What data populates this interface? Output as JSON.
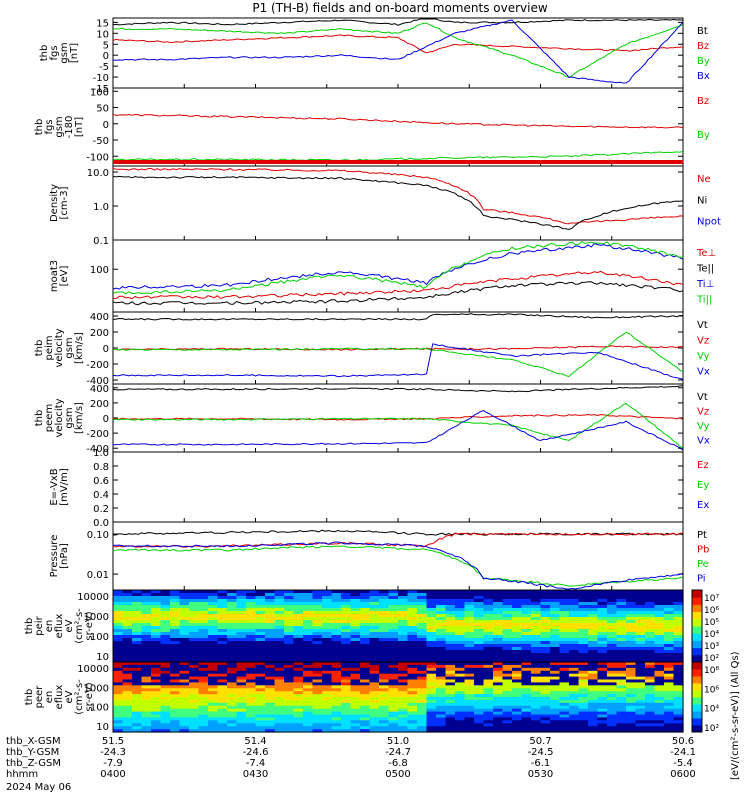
{
  "title": "P1  (TH-B) fields and on-board moments overview",
  "date_label": "2024 May 06",
  "time_axis": {
    "rows": [
      {
        "label": "thb_X-GSM",
        "values": [
          "51.5",
          "51.4",
          "51.0",
          "50.7",
          "50.6"
        ]
      },
      {
        "label": "thb_Y-GSM",
        "values": [
          "-24.3",
          "-24.6",
          "-24.7",
          "-24.5",
          "-24.1"
        ]
      },
      {
        "label": "thb_Z-GSM",
        "values": [
          "-7.9",
          "-7.4",
          "-6.8",
          "-6.1",
          "-5.4"
        ]
      },
      {
        "label": "hhmm",
        "values": [
          "0400",
          "0430",
          "0500",
          "0530",
          "0600"
        ]
      }
    ]
  },
  "colors": {
    "black": "#000000",
    "red": "#e00000",
    "green": "#00d000",
    "blue": "#0000e0"
  },
  "chart_data": [
    {
      "type": "line",
      "panel": "fgs-gsm",
      "ylabel": [
        "thb",
        "fgs",
        "gsm",
        "[nT]"
      ],
      "ylim": [
        -15,
        17
      ],
      "yticks": [
        15,
        10,
        5,
        0,
        -5,
        -10,
        -15
      ],
      "series": [
        {
          "name": "Bt",
          "color": "#000000",
          "x": [
            0,
            0.1,
            0.2,
            0.3,
            0.4,
            0.5,
            0.55,
            0.6,
            0.7,
            0.8,
            0.9,
            1
          ],
          "values": [
            14,
            15,
            14,
            15,
            16,
            14,
            17,
            15,
            15,
            16,
            16,
            16
          ]
        },
        {
          "name": "Bz",
          "color": "#e00000",
          "x": [
            0,
            0.1,
            0.2,
            0.3,
            0.4,
            0.5,
            0.55,
            0.6,
            0.7,
            0.8,
            0.9,
            1
          ],
          "values": [
            7,
            6,
            7,
            8,
            9,
            8,
            1,
            5,
            4,
            3,
            2,
            4
          ]
        },
        {
          "name": "By",
          "color": "#00d000",
          "x": [
            0,
            0.1,
            0.2,
            0.3,
            0.4,
            0.5,
            0.55,
            0.6,
            0.7,
            0.8,
            0.9,
            1
          ],
          "values": [
            12,
            12,
            11,
            10,
            12,
            10,
            15,
            8,
            0,
            -10,
            5,
            14
          ]
        },
        {
          "name": "Bx",
          "color": "#0000e0",
          "x": [
            0,
            0.1,
            0.2,
            0.3,
            0.4,
            0.5,
            0.55,
            0.6,
            0.7,
            0.8,
            0.9,
            1
          ],
          "values": [
            -2,
            -2,
            -1,
            -1,
            0,
            -2,
            4,
            10,
            16,
            -10,
            -13,
            15
          ]
        }
      ]
    },
    {
      "type": "line",
      "panel": "fgs-gsm-180",
      "ylabel": [
        "thb",
        "fgs",
        "gsm",
        "-180",
        "[nT]"
      ],
      "ylim": [
        -130,
        110
      ],
      "yticks": [
        100,
        50,
        0,
        -50,
        -100
      ],
      "series": [
        {
          "name": "Bz",
          "color": "#e00000",
          "x": [
            0,
            0.2,
            0.4,
            0.6,
            0.8,
            1
          ],
          "values": [
            28,
            22,
            15,
            0,
            -8,
            -12
          ]
        },
        {
          "name": "By",
          "color": "#00d000",
          "x": [
            0,
            0.2,
            0.4,
            0.6,
            0.8,
            1
          ],
          "values": [
            -110,
            -110,
            -112,
            -105,
            -100,
            -85
          ]
        }
      ]
    },
    {
      "type": "line",
      "panel": "density",
      "ylabel": [
        "Density",
        "[cm-3]"
      ],
      "log": true,
      "ylim": [
        0.1,
        15
      ],
      "yticks": [
        "10.0",
        "1.0",
        "0.1"
      ],
      "series": [
        {
          "name": "Ne",
          "color": "#e00000",
          "x": [
            0,
            0.2,
            0.4,
            0.55,
            0.65,
            0.8,
            1
          ],
          "values": [
            12,
            12,
            11,
            7,
            0.8,
            0.3,
            0.5
          ]
        },
        {
          "name": "Ni",
          "color": "#000000",
          "x": [
            0,
            0.2,
            0.4,
            0.55,
            0.65,
            0.8,
            1
          ],
          "values": [
            7,
            7,
            6.5,
            4,
            0.5,
            0.2,
            1.5
          ]
        },
        {
          "name": "Npot",
          "color": "#0000e0",
          "x": [
            0,
            1
          ],
          "values": [
            null,
            null
          ]
        }
      ]
    },
    {
      "type": "line",
      "panel": "moat3",
      "ylabel": [
        "moat3",
        "[eV]"
      ],
      "log": true,
      "ylim": [
        20,
        300
      ],
      "yticks": [
        "100"
      ],
      "series": [
        {
          "name": "Te⊥",
          "color": "#e00000",
          "x": [
            0,
            0.2,
            0.4,
            0.55,
            0.7,
            0.85,
            1
          ],
          "values": [
            35,
            35,
            40,
            45,
            70,
            90,
            55
          ]
        },
        {
          "name": "Te||",
          "color": "#000000",
          "x": [
            0,
            0.2,
            0.4,
            0.55,
            0.7,
            0.85,
            1
          ],
          "values": [
            28,
            28,
            30,
            35,
            55,
            60,
            45
          ]
        },
        {
          "name": "Ti⊥",
          "color": "#0000e0",
          "x": [
            0,
            0.2,
            0.4,
            0.55,
            0.7,
            0.85,
            1
          ],
          "values": [
            50,
            55,
            90,
            60,
            180,
            250,
            150
          ]
        },
        {
          "name": "Ti||",
          "color": "#00d000",
          "x": [
            0,
            0.2,
            0.4,
            0.55,
            0.7,
            0.85,
            1
          ],
          "values": [
            40,
            45,
            80,
            50,
            220,
            280,
            160
          ]
        }
      ]
    },
    {
      "type": "line",
      "panel": "peim-velocity",
      "ylabel": [
        "thb",
        "peim",
        "velocity",
        "gsm",
        "[km/s]"
      ],
      "ylim": [
        -450,
        450
      ],
      "yticks": [
        400,
        200,
        0,
        -200,
        -400
      ],
      "series": [
        {
          "name": "Vt",
          "color": "#000000",
          "x": [
            0,
            0.2,
            0.4,
            0.55,
            0.56,
            0.7,
            0.85,
            1
          ],
          "values": [
            360,
            360,
            360,
            360,
            420,
            420,
            380,
            400
          ]
        },
        {
          "name": "Vz",
          "color": "#e00000",
          "x": [
            0,
            0.2,
            0.4,
            0.55,
            0.7,
            0.85,
            1
          ],
          "values": [
            -20,
            -10,
            -20,
            -10,
            -10,
            20,
            10
          ]
        },
        {
          "name": "Vy",
          "color": "#00d000",
          "x": [
            0,
            0.2,
            0.4,
            0.55,
            0.7,
            0.8,
            0.9,
            1
          ],
          "values": [
            -20,
            -20,
            -10,
            -10,
            -150,
            -350,
            200,
            -300
          ]
        },
        {
          "name": "Vx",
          "color": "#0000e0",
          "x": [
            0,
            0.2,
            0.4,
            0.55,
            0.56,
            0.7,
            0.85,
            1
          ],
          "values": [
            -340,
            -340,
            -350,
            -330,
            50,
            -100,
            -50,
            -400
          ]
        }
      ]
    },
    {
      "type": "line",
      "panel": "peem-velocity",
      "ylabel": [
        "thb",
        "peem",
        "velocity",
        "gsm",
        "[km/s]"
      ],
      "ylim": [
        -450,
        450
      ],
      "yticks": [
        400,
        200,
        0,
        -200,
        -400
      ],
      "series": [
        {
          "name": "Vt",
          "color": "#000000",
          "x": [
            0,
            0.2,
            0.4,
            0.55,
            0.7,
            0.85,
            1
          ],
          "values": [
            380,
            380,
            390,
            380,
            350,
            390,
            420
          ]
        },
        {
          "name": "Vz",
          "color": "#e00000",
          "x": [
            0,
            0.2,
            0.4,
            0.55,
            0.7,
            0.85,
            1
          ],
          "values": [
            -10,
            -10,
            -20,
            -10,
            30,
            40,
            -10
          ]
        },
        {
          "name": "Vy",
          "color": "#00d000",
          "x": [
            0,
            0.2,
            0.4,
            0.55,
            0.7,
            0.8,
            0.9,
            1
          ],
          "values": [
            -20,
            -20,
            -10,
            -10,
            -100,
            -300,
            200,
            -400
          ]
        },
        {
          "name": "Vx",
          "color": "#0000e0",
          "x": [
            0,
            0.2,
            0.4,
            0.55,
            0.65,
            0.75,
            0.9,
            1
          ],
          "values": [
            -350,
            -350,
            -340,
            -330,
            100,
            -300,
            -50,
            -420
          ]
        }
      ]
    },
    {
      "type": "line",
      "panel": "e-field",
      "ylabel": [
        "E=-VxB",
        "[mV/m]"
      ],
      "ylim": [
        0,
        1
      ],
      "yticks": [
        "1.0",
        "0.8",
        "0.6",
        "0.4",
        "0.2",
        "0.0"
      ],
      "series": [
        {
          "name": "Ez",
          "color": "#e00000"
        },
        {
          "name": "Ey",
          "color": "#00d000"
        },
        {
          "name": "Ex",
          "color": "#0000e0"
        }
      ]
    },
    {
      "type": "line",
      "panel": "pressure",
      "ylabel": [
        "Pressure",
        "[nPa]"
      ],
      "log": true,
      "ylim": [
        0.004,
        0.2
      ],
      "yticks": [
        "0.10",
        "0.01"
      ],
      "series": [
        {
          "name": "Pt",
          "color": "#000000",
          "x": [
            0,
            0.2,
            0.4,
            0.55,
            0.6,
            0.8,
            1
          ],
          "values": [
            0.1,
            0.11,
            0.12,
            0.1,
            0.1,
            0.1,
            0.1
          ]
        },
        {
          "name": "Pb",
          "color": "#e00000",
          "x": [
            0,
            0.2,
            0.4,
            0.55,
            0.6,
            0.8,
            1
          ],
          "values": [
            0.05,
            0.05,
            0.06,
            0.05,
            0.1,
            0.1,
            0.1
          ]
        },
        {
          "name": "Pe",
          "color": "#00d000",
          "x": [
            0,
            0.2,
            0.4,
            0.55,
            0.65,
            0.8,
            1
          ],
          "values": [
            0.04,
            0.04,
            0.05,
            0.04,
            0.008,
            0.005,
            0.008
          ]
        },
        {
          "name": "Pi",
          "color": "#0000e0",
          "x": [
            0,
            0.2,
            0.4,
            0.55,
            0.65,
            0.8,
            1
          ],
          "values": [
            0.05,
            0.05,
            0.06,
            0.05,
            0.008,
            0.004,
            0.01
          ]
        }
      ]
    },
    {
      "type": "heatmap",
      "panel": "peir-en-eflux",
      "ylabel": [
        "thb",
        "peir",
        "en",
        "eflux",
        "eV",
        "(cm²-s-",
        "sr-eV)"
      ],
      "log": true,
      "ylim": [
        5,
        20000
      ],
      "yticks": [
        "10000",
        "1000",
        "100",
        "10"
      ],
      "colorbar_ticks": [
        "10⁷",
        "10⁶",
        "10⁵",
        "10⁴",
        "10³",
        "10²"
      ]
    },
    {
      "type": "heatmap",
      "panel": "peer-en-eflux",
      "ylabel": [
        "thb",
        "peer",
        "en",
        "eflux",
        "eV",
        "(cm²-s-",
        "sr-eV)"
      ],
      "log": true,
      "ylim": [
        5,
        20000
      ],
      "yticks": [
        "10000",
        "1000",
        "100",
        "10"
      ],
      "colorbar_ticks": [
        "10⁸",
        "10⁶",
        "10⁴",
        "10²"
      ]
    }
  ],
  "colorbar_title": "[eV/(cm²-s-sr-eV)] (All Qs)"
}
